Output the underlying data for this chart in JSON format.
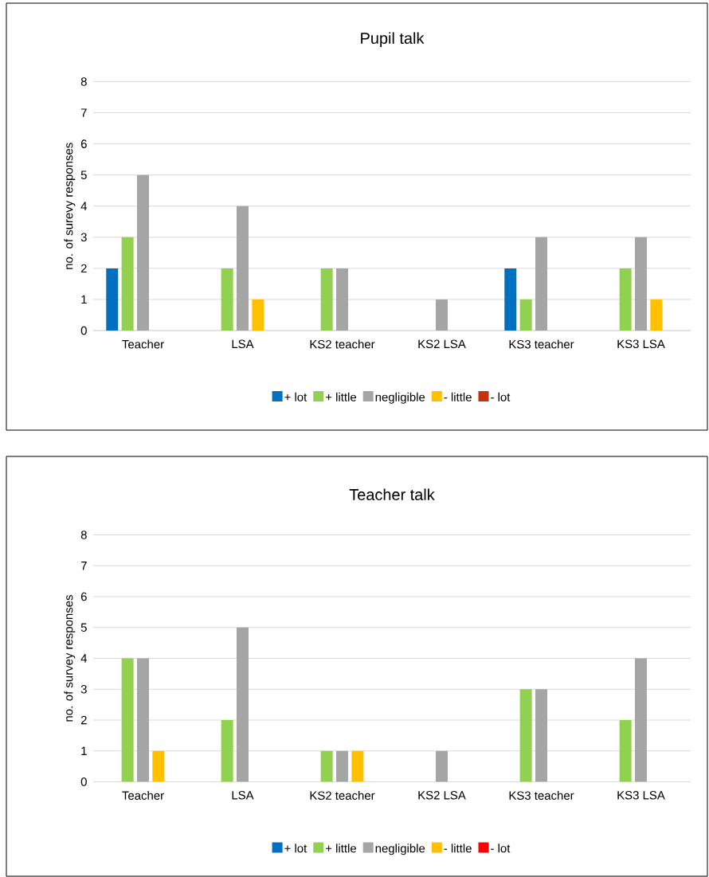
{
  "chart_data": [
    {
      "type": "bar",
      "title": "Pupil talk",
      "ylabel": "no. of  surevy responses",
      "categories": [
        "Teacher",
        "LSA",
        "KS2 teacher",
        "KS2 LSA",
        "KS3 teacher",
        "KS3 LSA"
      ],
      "ylim": [
        0,
        8
      ],
      "yticks": [
        0,
        1,
        2,
        3,
        4,
        5,
        6,
        7,
        8
      ],
      "grid": "y",
      "legend": "bottom",
      "series": [
        {
          "name": "+ lot",
          "color": "#0070c0",
          "values": [
            2,
            null,
            null,
            null,
            2,
            null
          ]
        },
        {
          "name": "+ little",
          "color": "#92d050",
          "values": [
            3,
            2,
            2,
            null,
            1,
            2
          ]
        },
        {
          "name": "negligible",
          "color": "#a5a5a5",
          "values": [
            5,
            4,
            2,
            1,
            3,
            3
          ]
        },
        {
          "name": "- little",
          "color": "#ffc000",
          "values": [
            null,
            1,
            null,
            null,
            null,
            1
          ]
        },
        {
          "name": "- lot",
          "color": "#c9300e",
          "values": [
            null,
            null,
            null,
            null,
            null,
            null
          ]
        }
      ]
    },
    {
      "type": "bar",
      "title": "Teacher talk",
      "ylabel": "no. of survey responses",
      "categories": [
        "Teacher",
        "LSA",
        "KS2 teacher",
        "KS2 LSA",
        "KS3 teacher",
        "KS3 LSA"
      ],
      "ylim": [
        0,
        8
      ],
      "yticks": [
        0,
        1,
        2,
        3,
        4,
        5,
        6,
        7,
        8
      ],
      "grid": "y",
      "legend": "bottom",
      "series": [
        {
          "name": "+ lot",
          "color": "#0070c0",
          "values": [
            null,
            null,
            null,
            null,
            null,
            null
          ]
        },
        {
          "name": "+ little",
          "color": "#92d050",
          "values": [
            4,
            2,
            1,
            null,
            3,
            2
          ]
        },
        {
          "name": "negligible",
          "color": "#a5a5a5",
          "values": [
            4,
            5,
            1,
            1,
            3,
            4
          ]
        },
        {
          "name": "- little",
          "color": "#ffc000",
          "values": [
            1,
            null,
            1,
            null,
            null,
            null
          ]
        },
        {
          "name": "- lot",
          "color": "#ff0000",
          "values": [
            null,
            null,
            null,
            null,
            null,
            null
          ]
        }
      ]
    }
  ]
}
